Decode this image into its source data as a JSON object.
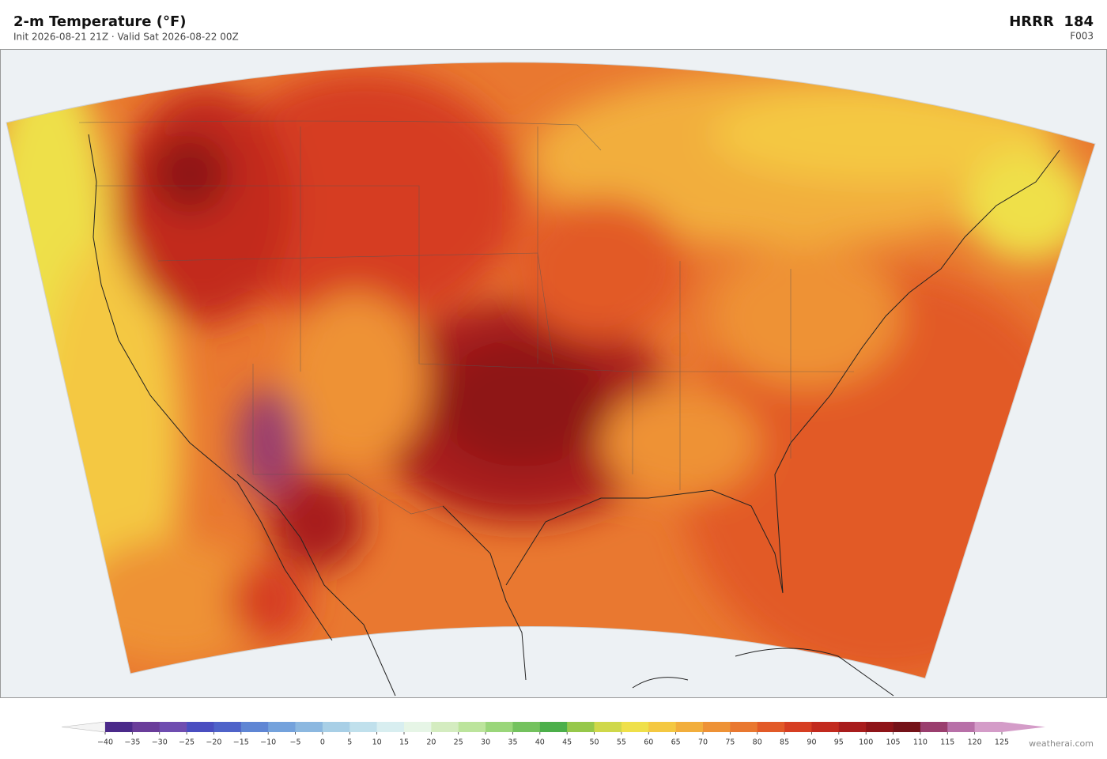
{
  "header": {
    "title": "2-m Temperature  (°F)",
    "subtitle": "Init 2026-08-21 21Z  ·  Valid Sat 2026-08-22 00Z",
    "model": "HRRR  184",
    "forecast_hour": "F003"
  },
  "colorbar": {
    "ticks": [
      {
        "value": -40,
        "label": "−40"
      },
      {
        "value": -35,
        "label": "−35"
      },
      {
        "value": -30,
        "label": "−30"
      },
      {
        "value": -25,
        "label": "−25"
      },
      {
        "value": -20,
        "label": "−20"
      },
      {
        "value": -15,
        "label": "−15"
      },
      {
        "value": -10,
        "label": "−10"
      },
      {
        "value": -5,
        "label": "−5"
      },
      0,
      5,
      10,
      15,
      20,
      25,
      30,
      35,
      40,
      45,
      50,
      55,
      60,
      65,
      70,
      75,
      80,
      85,
      90,
      95,
      100,
      105,
      110,
      115,
      120,
      125
    ],
    "colors": [
      "#4b2a8a",
      "#6a3d9a",
      "#6f4db0",
      "#4a4ec0",
      "#4f63c9",
      "#5f86d4",
      "#74a2dc",
      "#8cb8e0",
      "#a8cfe6",
      "#c0e0ec",
      "#d8eef0",
      "#e6f5e6",
      "#d4ecc0",
      "#bce49c",
      "#9ad67a",
      "#74c25e",
      "#4caf4a",
      "#96c84a",
      "#cfd84a",
      "#efe04a",
      "#f4c842",
      "#f2ae3c",
      "#ee9236",
      "#e97830",
      "#e25a28",
      "#d63e22",
      "#c22a1e",
      "#a81c1c",
      "#8e1418",
      "#741218",
      "#9a3e6e",
      "#b870a8",
      "#d49cc8"
    ],
    "under_color": "#f4f4f4",
    "over_color": "#d49cc8"
  },
  "footer": {
    "credit": "weatherai.com"
  }
}
